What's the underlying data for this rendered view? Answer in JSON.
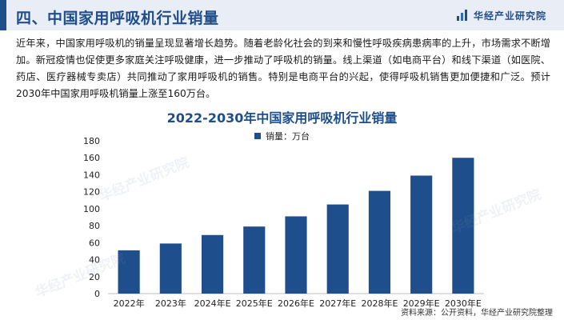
{
  "header": {
    "title": "四、中国家用呼吸机行业销量",
    "brand": "华经产业研究院",
    "logo_icon": "bar-logo-icon"
  },
  "intro_text": "近年来，中国家用呼吸机的销量呈现显著增长趋势。随着老龄化社会的到来和慢性呼吸疾病患病率的上升，市场需求不断增加。新冠疫情也促使更多家庭关注呼吸健康，进一步推动了呼吸机的销量。线上渠道（如电商平台）和线下渠道（如医院、药店、医疗器械专卖店）共同推动了家用呼吸机的销售。特别是电商平台的兴起，使得呼吸机销售更加便捷和广泛。预计2030年中国家用呼吸机销量上涨至160万台。",
  "watermark": "华经产业研究院",
  "source": "资料来源：公开资料，华经产业研究院整理",
  "chart_data": {
    "type": "bar",
    "title": "2022-2030年中国家用呼吸机行业销量",
    "categories": [
      "2022年",
      "2023年",
      "2024年E",
      "2025年E",
      "2026年E",
      "2027年E",
      "2028年E",
      "2029年E",
      "2030年E"
    ],
    "series": [
      {
        "name": "销量：万台",
        "values": [
          51,
          59,
          69,
          79,
          91,
          105,
          121,
          139,
          160
        ],
        "color": "#1f4e8c"
      }
    ],
    "ylim": [
      0,
      180
    ],
    "yticks": [
      0,
      20,
      40,
      60,
      80,
      100,
      120,
      140,
      160,
      180
    ],
    "grid": false,
    "legend": "top-center"
  }
}
